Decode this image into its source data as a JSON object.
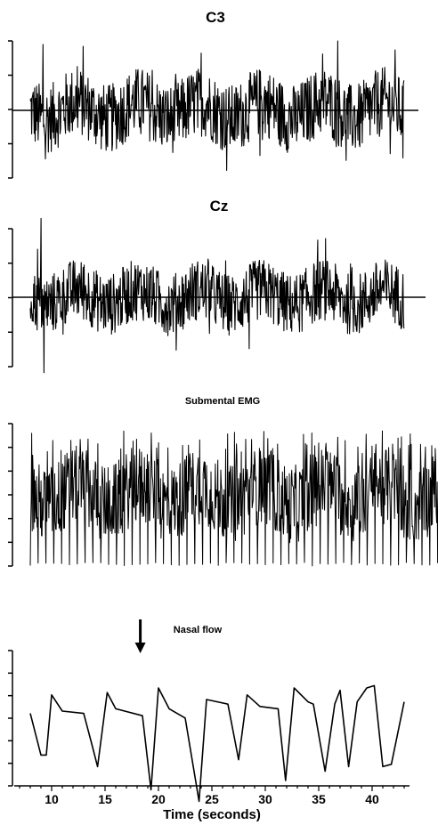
{
  "chart_data": [
    {
      "type": "line",
      "title": "C3",
      "signal": "eeg",
      "x_range": [
        8,
        43
      ],
      "baseline_extends_to": 48,
      "y_ticks": 5,
      "amplitude": 0.5,
      "spikes": [
        {
          "x": 9.2,
          "y": 0.95
        },
        {
          "x": 9.4,
          "y": -0.7
        },
        {
          "x": 36.8,
          "y": 1.0
        },
        {
          "x": 29.5,
          "y": -0.65
        }
      ]
    },
    {
      "type": "line",
      "title": "Cz",
      "signal": "eeg",
      "x_range": [
        8,
        43
      ],
      "baseline_extends_to": 48,
      "y_ticks": 5,
      "amplitude": 0.45,
      "spikes": [
        {
          "x": 9.0,
          "y": 1.15
        },
        {
          "x": 9.3,
          "y": -1.1
        },
        {
          "x": 8.7,
          "y": 0.7
        },
        {
          "x": 28.5,
          "y": -0.75
        }
      ]
    },
    {
      "type": "line",
      "title": "Submental EMG",
      "signal": "emg",
      "x_range": [
        8,
        47.5
      ],
      "y_ticks": 7,
      "amplitude": 0.55,
      "spike_interval": 0.7
    },
    {
      "type": "line",
      "title": "Nasal flow",
      "signal": "flow",
      "x_range": [
        8,
        43
      ],
      "y_ticks": 7,
      "breaths": [
        {
          "x": 8.0,
          "y": 0.2
        },
        {
          "x": 9.0,
          "y": -0.7
        },
        {
          "x": 9.5,
          "y": -0.7
        },
        {
          "x": 10.0,
          "y": 0.6
        },
        {
          "x": 11.0,
          "y": 0.25
        },
        {
          "x": 13.0,
          "y": 0.2
        },
        {
          "x": 13.8,
          "y": -0.5
        },
        {
          "x": 14.3,
          "y": -0.95
        },
        {
          "x": 15.2,
          "y": 0.65
        },
        {
          "x": 16.0,
          "y": 0.3
        },
        {
          "x": 18.5,
          "y": 0.15
        },
        {
          "x": 19.3,
          "y": -1.45
        },
        {
          "x": 20.0,
          "y": 0.75
        },
        {
          "x": 21.0,
          "y": 0.3
        },
        {
          "x": 22.5,
          "y": 0.1
        },
        {
          "x": 23.8,
          "y": -1.7
        },
        {
          "x": 24.5,
          "y": 0.5
        },
        {
          "x": 26.5,
          "y": 0.4
        },
        {
          "x": 27.5,
          "y": -0.8
        },
        {
          "x": 28.3,
          "y": 0.6
        },
        {
          "x": 29.5,
          "y": 0.35
        },
        {
          "x": 31.2,
          "y": 0.3
        },
        {
          "x": 31.9,
          "y": -1.25
        },
        {
          "x": 32.7,
          "y": 0.75
        },
        {
          "x": 34.0,
          "y": 0.45
        },
        {
          "x": 34.5,
          "y": 0.4
        },
        {
          "x": 35.6,
          "y": -1.05
        },
        {
          "x": 36.5,
          "y": 0.4
        },
        {
          "x": 37.0,
          "y": 0.7
        },
        {
          "x": 37.8,
          "y": -0.95
        },
        {
          "x": 38.6,
          "y": 0.45
        },
        {
          "x": 39.5,
          "y": 0.75
        },
        {
          "x": 40.2,
          "y": 0.8
        },
        {
          "x": 41.0,
          "y": -0.95
        },
        {
          "x": 41.8,
          "y": -0.9
        },
        {
          "x": 43.0,
          "y": 0.45
        }
      ],
      "marker": {
        "type": "down-arrow",
        "x": 18.3
      },
      "x_axis": {
        "label": "Time (seconds)",
        "ticks": [
          10,
          15,
          20,
          25,
          30,
          35,
          40
        ],
        "range": [
          6.5,
          43.5
        ]
      }
    }
  ]
}
